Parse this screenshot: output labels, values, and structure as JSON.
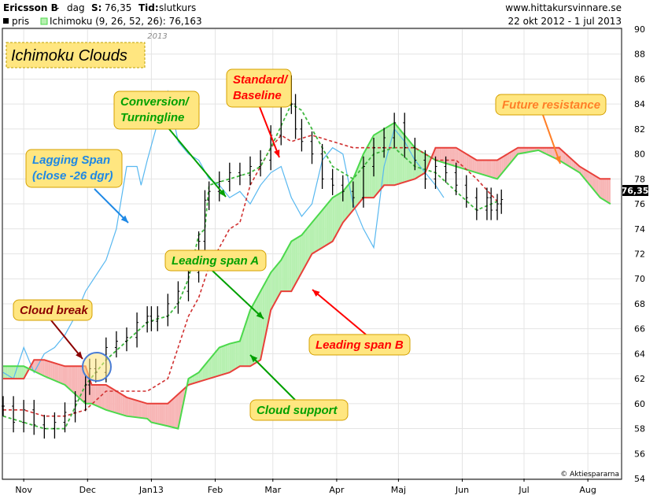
{
  "header": {
    "symbol": "Ericsson B",
    "sep": " - ",
    "interval": "dag",
    "s_label": "S:",
    "s_value": "76,35",
    "tid_label": "Tid:",
    "tid_value": "slutkurs",
    "website": "www.hittakursvinnare.se"
  },
  "legend": {
    "pris_label": "pris",
    "ichimoku_label": "Ichimoku (9, 26, 52, 26): 76,163",
    "date_range": "22 okt 2012 - 1 jul 2013",
    "year_marker": "2013"
  },
  "title": "Ichimoku Clouds",
  "credit": "© Aktiespararna",
  "last_price_tag": "76,35",
  "callouts": [
    {
      "id": "standard",
      "lines": [
        "Standard/",
        "Baseline"
      ],
      "color": "#ff0000"
    },
    {
      "id": "conversion",
      "lines": [
        "Conversion/",
        "Turningline"
      ],
      "color": "#00a000"
    },
    {
      "id": "lagging",
      "lines": [
        "Lagging Span",
        "(close -26 dgr)"
      ],
      "color": "#1e88e5"
    },
    {
      "id": "future",
      "lines": [
        "Future resistance"
      ],
      "color": "#ff7f27"
    },
    {
      "id": "spanA",
      "lines": [
        "Leading span A"
      ],
      "color": "#00a000"
    },
    {
      "id": "cloudbreak",
      "lines": [
        "Cloud break"
      ],
      "color": "#8b0000"
    },
    {
      "id": "spanB",
      "lines": [
        "Leading span B"
      ],
      "color": "#ff0000"
    },
    {
      "id": "support",
      "lines": [
        "Cloud support"
      ],
      "color": "#00a000"
    }
  ],
  "colors": {
    "bullish_cloud": "#b7f0b1",
    "bearish_cloud": "#f7b6b6",
    "span_a": "#4cd94c",
    "span_b": "#e8403a",
    "conversion": "#3fb83f",
    "baseline": "#d03030",
    "lagging": "#58b8f0",
    "price": "#000000",
    "callout_bg": "#ffe680"
  },
  "chart_data": {
    "type": "line",
    "ylim": [
      54,
      90
    ],
    "y_ticks": [
      "54",
      "56",
      "58",
      "60",
      "62",
      "64",
      "66",
      "68",
      "70",
      "72",
      "74",
      "76",
      "78",
      "80",
      "82",
      "84",
      "86",
      "88",
      "90"
    ],
    "x_ticks": [
      "Nov",
      "Dec",
      "Jan13",
      "Feb",
      "Mar",
      "Apr",
      "Maj",
      "Jun",
      "Jul",
      "Aug"
    ],
    "x_tick_days": [
      10,
      41,
      72,
      103,
      131,
      162,
      192,
      223,
      253,
      284
    ],
    "x_range_days": [
      0,
      300
    ],
    "series": [
      {
        "name": "pris",
        "type": "ohlc",
        "x": [
          0,
          5,
          10,
          15,
          20,
          25,
          30,
          35,
          40,
          42,
          45,
          50,
          55,
          60,
          65,
          70,
          72,
          75,
          80,
          85,
          90,
          95,
          98,
          100,
          105,
          110,
          115,
          120,
          125,
          130,
          135,
          140,
          142,
          145,
          150,
          155,
          160,
          165,
          170,
          175,
          180,
          185,
          190,
          195,
          200,
          205,
          210,
          215,
          220,
          225,
          230,
          235,
          237,
          240,
          242
        ],
        "close": [
          59.8,
          58.5,
          59.5,
          58.3,
          58.0,
          58.5,
          59.3,
          60.2,
          61.5,
          62.8,
          62.5,
          64.5,
          65.0,
          65.3,
          66.5,
          67.0,
          66.6,
          67.0,
          68.0,
          69.0,
          70.5,
          73.0,
          76.3,
          77.0,
          77.8,
          78.5,
          78.3,
          79.0,
          79.5,
          81.5,
          85.5,
          84.0,
          82.0,
          81.0,
          80.0,
          78.0,
          77.5,
          77.0,
          76.5,
          79.0,
          80.5,
          81.3,
          82.5,
          80.5,
          79.5,
          78.0,
          79.0,
          78.5,
          77.5,
          76.5,
          75.5,
          76.5,
          75.5,
          76.0,
          76.35
        ]
      },
      {
        "name": "Ichimoku (9, 26, 52, 26): 76,163",
        "type": "cloud",
        "span_a": {
          "x": [
            0,
            10,
            20,
            30,
            40,
            43,
            50,
            60,
            70,
            72,
            80,
            85,
            90,
            95,
            100,
            105,
            110,
            115,
            120,
            130,
            135,
            140,
            145,
            150,
            155,
            160,
            165,
            170,
            175,
            180,
            190,
            200,
            210,
            220,
            230,
            240,
            250,
            260,
            270,
            280,
            290,
            295
          ],
          "y": [
            63.0,
            63.0,
            62.2,
            61.5,
            60.0,
            60.0,
            59.5,
            59.0,
            58.8,
            58.5,
            58.2,
            58.0,
            62.0,
            62.5,
            63.5,
            64.5,
            64.8,
            65.0,
            67.5,
            70.5,
            71.5,
            73.0,
            73.5,
            74.5,
            75.5,
            76.5,
            77.0,
            78.0,
            80.0,
            81.5,
            82.5,
            80.5,
            79.5,
            79.0,
            78.5,
            78.0,
            80.0,
            80.3,
            79.5,
            78.5,
            76.5,
            76.0
          ]
        },
        "span_b": {
          "x": [
            0,
            10,
            15,
            20,
            30,
            40,
            43,
            50,
            60,
            70,
            72,
            80,
            90,
            100,
            110,
            115,
            120,
            125,
            130,
            135,
            140,
            150,
            155,
            160,
            165,
            170,
            175,
            180,
            185,
            190,
            200,
            205,
            210,
            220,
            230,
            240,
            250,
            260,
            270,
            280,
            290,
            295
          ],
          "y": [
            62.0,
            62.0,
            63.5,
            63.5,
            63.0,
            63.0,
            61.5,
            61.5,
            60.5,
            60.0,
            60.0,
            60.0,
            61.5,
            62.0,
            62.5,
            63.0,
            63.0,
            63.5,
            67.5,
            69.0,
            69.0,
            72.0,
            72.5,
            73.0,
            74.5,
            75.5,
            76.5,
            76.5,
            77.5,
            77.5,
            78.0,
            78.5,
            80.5,
            80.5,
            79.5,
            79.5,
            80.5,
            80.5,
            80.5,
            79.0,
            78.0,
            78.0
          ]
        },
        "conversion": {
          "x": [
            0,
            10,
            20,
            30,
            40,
            50,
            60,
            70,
            75,
            80,
            85,
            90,
            95,
            98,
            100,
            110,
            120,
            125,
            130,
            140,
            145,
            150,
            160,
            170,
            180,
            190,
            200,
            210,
            220,
            230,
            240
          ],
          "y": [
            59.0,
            58.5,
            58.0,
            58.0,
            61.5,
            63.5,
            65.0,
            66.5,
            66.8,
            67.0,
            68.0,
            70.0,
            73.5,
            74.0,
            77.5,
            78.0,
            78.5,
            79.0,
            80.5,
            84.0,
            83.5,
            82.0,
            79.0,
            78.0,
            80.0,
            80.5,
            79.0,
            78.5,
            77.0,
            75.5,
            76.2
          ]
        },
        "baseline": {
          "x": [
            0,
            10,
            20,
            30,
            40,
            50,
            60,
            70,
            80,
            90,
            95,
            100,
            110,
            115,
            120,
            125,
            130,
            135,
            140,
            150,
            160,
            170,
            180,
            190,
            200,
            210,
            220,
            230,
            240
          ],
          "y": [
            59.5,
            59.5,
            59.0,
            59.0,
            59.5,
            61.0,
            61.0,
            61.0,
            62.0,
            67.0,
            68.5,
            71.0,
            74.0,
            74.5,
            77.5,
            79.0,
            80.5,
            81.5,
            81.0,
            81.5,
            81.0,
            80.5,
            80.5,
            80.5,
            80.5,
            79.5,
            79.5,
            78.0,
            76.2
          ]
        },
        "lagging": {
          "x": [
            0,
            5,
            10,
            15,
            20,
            25,
            30,
            35,
            40,
            50,
            55,
            60,
            65,
            67,
            70,
            75,
            80,
            85,
            90,
            95,
            100,
            105,
            110,
            115,
            120,
            125,
            130,
            135,
            140,
            145,
            150,
            155,
            160,
            165,
            170,
            175,
            180,
            185,
            190,
            195,
            200,
            205,
            210,
            214
          ],
          "y": [
            62.5,
            62.0,
            64.5,
            62.5,
            64.0,
            64.5,
            65.5,
            67.0,
            69.0,
            71.5,
            74.0,
            79.0,
            79.0,
            77.5,
            79.5,
            82.5,
            85.0,
            81.0,
            80.0,
            79.5,
            78.0,
            77.5,
            76.5,
            77.0,
            76.0,
            77.5,
            78.5,
            79.0,
            76.5,
            75.0,
            76.0,
            79.5,
            80.5,
            80.0,
            76.0,
            74.0,
            72.5,
            79.0,
            82.0,
            81.0,
            79.5,
            78.5,
            77.5,
            76.5
          ]
        }
      }
    ]
  }
}
